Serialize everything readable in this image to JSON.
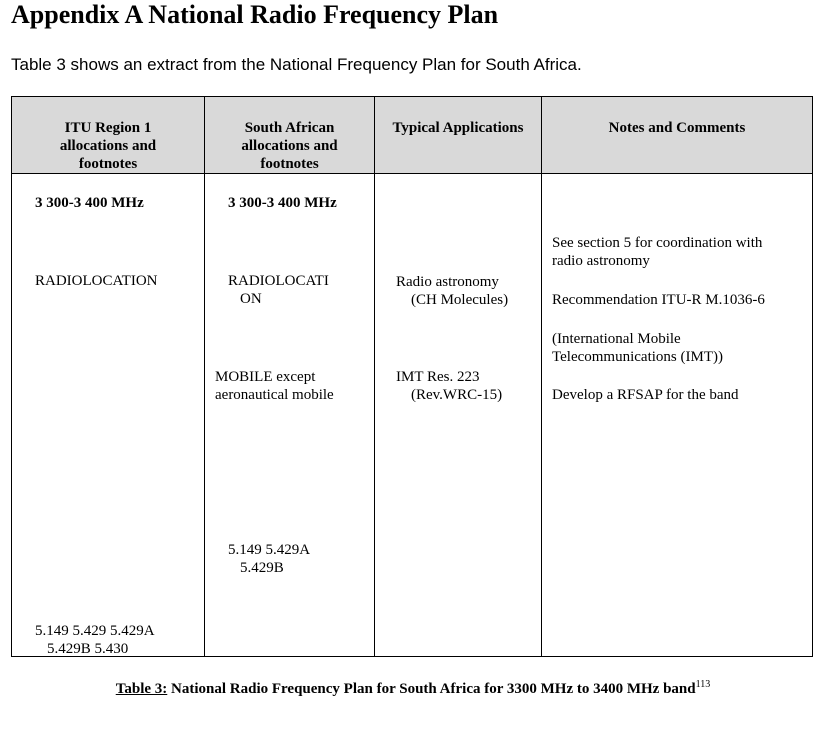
{
  "heading": "Appendix A National Radio Frequency Plan",
  "intro": "Table 3 shows an extract from the National Frequency Plan for South Africa.",
  "table": {
    "headers": [
      [
        "ITU Region 1",
        "allocations and",
        "footnotes"
      ],
      [
        "South African",
        "allocations and",
        "footnotes"
      ],
      [
        "Typical Applications"
      ],
      [
        "Notes and Comments"
      ]
    ],
    "itu": {
      "band": "3 300-3 400 MHz",
      "allocation": "RADIOLOCATION",
      "footnotes": [
        "5.149 5.429 5.429A",
        "5.429B 5.430"
      ]
    },
    "sa": {
      "band": "3 300-3 400 MHz",
      "allocation": [
        "RADIOLOCATI",
        "ON"
      ],
      "mobile": [
        "MOBILE except",
        "aeronautical mobile"
      ],
      "footnotes": [
        "5.149 5.429A",
        "5.429B"
      ]
    },
    "applications": {
      "radio_astronomy": [
        "Radio astronomy",
        "(CH Molecules)"
      ],
      "imt": [
        "IMT Res. 223",
        "(Rev.WRC-15)"
      ]
    },
    "notes": {
      "coordination": [
        "See section 5 for coordination with",
        "radio astronomy"
      ],
      "recommendation": "Recommendation ITU-R M.1036-6",
      "imt": [
        "(International Mobile",
        "Telecommunications (IMT))"
      ],
      "rfsap": "Develop a RFSAP for the band"
    }
  },
  "caption": {
    "label": "Table 3:",
    "text": " National Radio Frequency Plan for South Africa for 3300 MHz to 3400 MHz band",
    "footnote_ref": "113"
  }
}
